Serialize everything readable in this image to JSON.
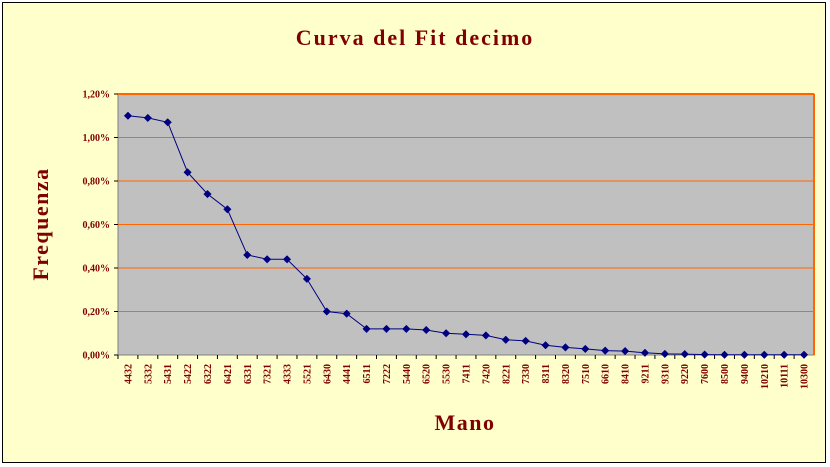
{
  "chart_data": {
    "type": "line",
    "title": "Curva del Fit decimo",
    "xlabel": "Mano",
    "ylabel": "Frequenza",
    "ylim": [
      0,
      1.2
    ],
    "y_ticks": [
      "0,00%",
      "0,20%",
      "0,40%",
      "0,60%",
      "0,80%",
      "1,00%",
      "1,20%"
    ],
    "grid": true,
    "categories": [
      "4432",
      "5332",
      "5431",
      "5422",
      "6322",
      "6421",
      "6331",
      "7321",
      "4333",
      "5521",
      "6430",
      "4441",
      "6511",
      "7222",
      "5440",
      "6520",
      "5530",
      "7411",
      "7420",
      "8221",
      "7330",
      "8311",
      "8320",
      "7510",
      "6610",
      "8410",
      "9211",
      "9310",
      "9220",
      "7600",
      "8500",
      "9400",
      "10210",
      "10111",
      "10300"
    ],
    "series": [
      {
        "values": [
          1.1,
          1.09,
          1.07,
          0.84,
          0.74,
          0.67,
          0.46,
          0.44,
          0.44,
          0.35,
          0.2,
          0.19,
          0.12,
          0.12,
          0.12,
          0.115,
          0.1,
          0.095,
          0.09,
          0.07,
          0.065,
          0.045,
          0.035,
          0.028,
          0.02,
          0.018,
          0.01,
          0.005,
          0.004,
          0.002,
          0.001,
          0.001,
          0.001,
          0.001,
          0.001
        ]
      }
    ],
    "colors": {
      "background": "#ffffcc",
      "plot_area": "#c0c0c0",
      "gridline": "#ff6600",
      "series_line": "#000080",
      "text": "#800000"
    }
  }
}
